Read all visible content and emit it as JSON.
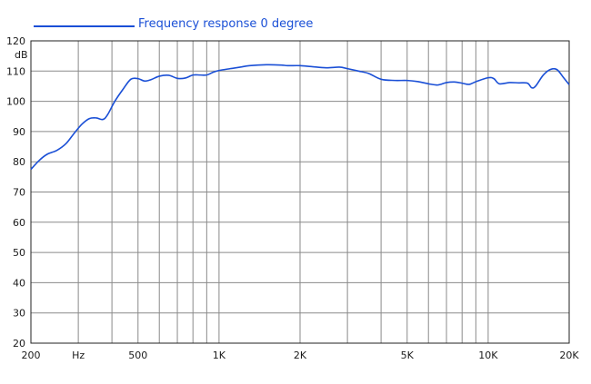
{
  "chart_data": {
    "type": "line",
    "x_scale": "log",
    "xlim": [
      200,
      20000
    ],
    "ylim": [
      20,
      120
    ],
    "ylabel": "dB",
    "legend_position": "top-left",
    "grid": true,
    "colors": {
      "series": "#1a4fd6",
      "grid": "#8a8a8a",
      "axes": "#222222"
    },
    "y_ticks": [
      "20",
      "30",
      "40",
      "50",
      "60",
      "70",
      "80",
      "90",
      "100",
      "110",
      "120"
    ],
    "x_ticks": [
      {
        "value": 200,
        "label": "200"
      },
      {
        "value": 300,
        "label": "Hz"
      },
      {
        "value": 500,
        "label": "500"
      },
      {
        "value": 1000,
        "label": "1K"
      },
      {
        "value": 2000,
        "label": "2K"
      },
      {
        "value": 5000,
        "label": "5K"
      },
      {
        "value": 10000,
        "label": "10K"
      },
      {
        "value": 20000,
        "label": "20K"
      }
    ],
    "x_gridlines": [
      300,
      400,
      500,
      600,
      700,
      800,
      900,
      1000,
      2000,
      3000,
      4000,
      5000,
      6000,
      7000,
      8000,
      9000,
      10000
    ],
    "series": [
      {
        "name": "Frequency response 0 degree",
        "points": [
          [
            200,
            77.5
          ],
          [
            215,
            80.5
          ],
          [
            230,
            82.5
          ],
          [
            250,
            83.8
          ],
          [
            270,
            86
          ],
          [
            290,
            89.5
          ],
          [
            310,
            92.5
          ],
          [
            330,
            94.3
          ],
          [
            350,
            94.5
          ],
          [
            370,
            94
          ],
          [
            385,
            95.5
          ],
          [
            410,
            100
          ],
          [
            440,
            104
          ],
          [
            470,
            107.3
          ],
          [
            500,
            107.5
          ],
          [
            530,
            106.7
          ],
          [
            560,
            107.2
          ],
          [
            600,
            108.3
          ],
          [
            650,
            108.6
          ],
          [
            700,
            107.6
          ],
          [
            750,
            107.7
          ],
          [
            800,
            108.7
          ],
          [
            850,
            108.7
          ],
          [
            900,
            108.7
          ],
          [
            950,
            109.6
          ],
          [
            1000,
            110.2
          ],
          [
            1100,
            110.8
          ],
          [
            1200,
            111.3
          ],
          [
            1300,
            111.8
          ],
          [
            1500,
            112.1
          ],
          [
            1700,
            112
          ],
          [
            1800,
            111.8
          ],
          [
            2000,
            111.8
          ],
          [
            2200,
            111.5
          ],
          [
            2500,
            111.1
          ],
          [
            2800,
            111.3
          ],
          [
            3000,
            110.8
          ],
          [
            3300,
            110
          ],
          [
            3600,
            109.2
          ],
          [
            4000,
            107.3
          ],
          [
            4500,
            106.9
          ],
          [
            5000,
            106.9
          ],
          [
            5500,
            106.5
          ],
          [
            6000,
            105.8
          ],
          [
            6500,
            105.4
          ],
          [
            7000,
            106.2
          ],
          [
            7500,
            106.4
          ],
          [
            8000,
            106
          ],
          [
            8500,
            105.6
          ],
          [
            9000,
            106.5
          ],
          [
            10000,
            107.8
          ],
          [
            10500,
            107.5
          ],
          [
            11000,
            105.8
          ],
          [
            12000,
            106.2
          ],
          [
            13000,
            106.1
          ],
          [
            14000,
            106
          ],
          [
            14500,
            104.5
          ],
          [
            15000,
            105
          ],
          [
            16000,
            108.6
          ],
          [
            17000,
            110.5
          ],
          [
            18000,
            110.5
          ],
          [
            19000,
            108
          ],
          [
            20000,
            105.5
          ]
        ]
      }
    ]
  }
}
